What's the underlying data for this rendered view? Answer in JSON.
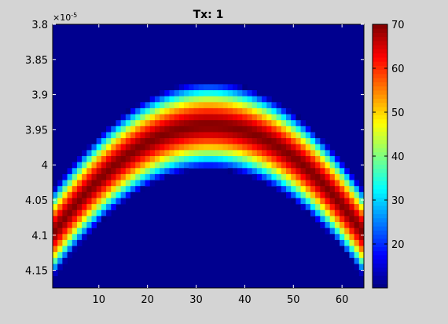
{
  "chart_data": {
    "type": "heatmap",
    "title": "Tx: 1",
    "xlabel": "",
    "ylabel": "",
    "colormap": "jet",
    "x_range": [
      0.5,
      64.5
    ],
    "x_ticks": [
      10,
      20,
      30,
      40,
      50,
      60
    ],
    "y_exponent_label": "×10",
    "y_exponent_power": "-5",
    "y_range": [
      3.8,
      4.175
    ],
    "y_ticks": [
      3.8,
      3.85,
      3.9,
      3.95,
      4,
      4.05,
      4.1,
      4.15
    ],
    "y_tick_labels": [
      "3.8",
      "3.85",
      "3.9",
      "3.95",
      "4",
      "4.05",
      "4.1",
      "4.15"
    ],
    "y_reversed": true,
    "clim": [
      10,
      70
    ],
    "colorbar_ticks": [
      20,
      30,
      40,
      50,
      60,
      70
    ],
    "columns": 64,
    "rows": 44,
    "background_value": 10,
    "peak_value": 70,
    "band_center_y": [
      4.0939,
      4.0847,
      4.0757,
      4.0671,
      4.0587,
      4.0507,
      4.0429,
      4.0354,
      4.0282,
      4.0213,
      4.0147,
      4.0084,
      4.0023,
      3.9966,
      3.9912,
      3.986,
      3.9812,
      3.9766,
      3.9723,
      3.9684,
      3.9647,
      3.9613,
      3.9583,
      3.9555,
      3.953,
      3.9508,
      3.9489,
      3.9473,
      3.946,
      3.945,
      3.9443,
      3.9439,
      3.9439,
      3.9441,
      3.9446,
      3.9454,
      3.9465,
      3.948,
      3.9497,
      3.9518,
      3.9541,
      3.9568,
      3.9598,
      3.9631,
      3.9667,
      3.9706,
      3.9748,
      3.9793,
      3.9841,
      3.9892,
      3.9946,
      4.0004,
      4.0064,
      4.0128,
      4.0195,
      4.0265,
      4.0338,
      4.0414,
      4.0493,
      4.0575,
      4.0661,
      4.0749,
      4.0841,
      4.0936
    ],
    "band_halfwidth_y": 0.0625
  }
}
